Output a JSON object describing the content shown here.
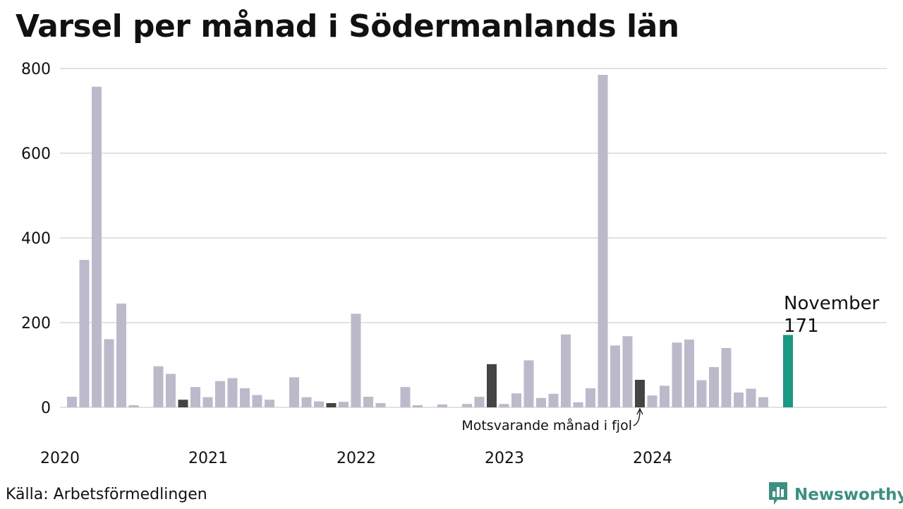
{
  "title": "Varsel per månad i Södermanlands län",
  "source": "Källa: Arbetsförmedlingen",
  "brand": {
    "name": "Newsworthy",
    "icon": "newsworthy-logo-icon"
  },
  "colors": {
    "bar": "#bcbaca",
    "same_month_last_year": "#444444",
    "current": "#1a9985",
    "grid": "#d9d9d9",
    "brand": "#3e8f82"
  },
  "chart_data": {
    "type": "bar",
    "title": "Varsel per månad i Södermanlands län",
    "xlabel": "",
    "ylabel": "",
    "ylim": [
      0,
      800
    ],
    "yticks": [
      0,
      200,
      400,
      600,
      800
    ],
    "year_labels": [
      "2020",
      "2021",
      "2022",
      "2023",
      "2024"
    ],
    "grid": true,
    "categories": [
      "2020-01",
      "2020-02",
      "2020-03",
      "2020-04",
      "2020-05",
      "2020-06",
      "2020-07",
      "2020-08",
      "2020-09",
      "2020-10",
      "2020-11",
      "2020-12",
      "2021-01",
      "2021-02",
      "2021-03",
      "2021-04",
      "2021-05",
      "2021-06",
      "2021-07",
      "2021-08",
      "2021-09",
      "2021-10",
      "2021-11",
      "2021-12",
      "2022-01",
      "2022-02",
      "2022-03",
      "2022-04",
      "2022-05",
      "2022-06",
      "2022-07",
      "2022-08",
      "2022-09",
      "2022-10",
      "2022-11",
      "2022-12",
      "2023-01",
      "2023-02",
      "2023-03",
      "2023-04",
      "2023-05",
      "2023-06",
      "2023-07",
      "2023-08",
      "2023-09",
      "2023-10",
      "2023-11",
      "2023-12",
      "2024-01",
      "2024-02",
      "2024-03",
      "2024-04",
      "2024-05",
      "2024-06",
      "2024-07",
      "2024-08",
      "2024-09",
      "2024-10",
      "2024-11"
    ],
    "values": [
      25,
      348,
      757,
      161,
      245,
      5,
      0,
      97,
      79,
      18,
      48,
      24,
      62,
      69,
      45,
      29,
      18,
      0,
      71,
      24,
      14,
      10,
      13,
      221,
      25,
      10,
      0,
      48,
      5,
      0,
      7,
      0,
      8,
      25,
      102,
      8,
      33,
      111,
      22,
      32,
      172,
      12,
      45,
      785,
      146,
      168,
      65,
      28,
      51,
      153,
      160,
      64,
      95,
      140,
      35,
      44,
      24,
      0,
      171
    ],
    "highlight_last_year": [
      "2020-10",
      "2021-10",
      "2022-11",
      "2023-11"
    ],
    "current_index": 58,
    "annotations": {
      "current_month": "November",
      "current_value": "171",
      "last_year_label": "Motsvarande månad i fjol"
    }
  }
}
